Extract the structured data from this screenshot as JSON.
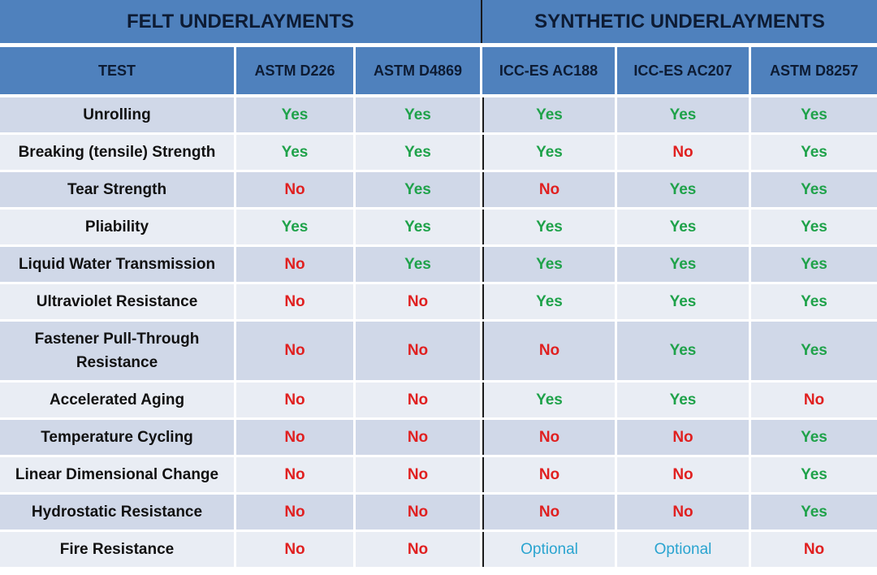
{
  "groups": {
    "felt": "FELT UNDERLAYMENTS",
    "synthetic": "SYNTHETIC UNDERLAYMENTS"
  },
  "columns": [
    "TEST",
    "ASTM D226",
    "ASTM D4869",
    "ICC-ES AC188",
    "ICC-ES AC207",
    "ASTM D8257"
  ],
  "rows": [
    {
      "test": "Unrolling",
      "values": [
        "Yes",
        "Yes",
        "Yes",
        "Yes",
        "Yes"
      ]
    },
    {
      "test": "Breaking (tensile) Strength",
      "values": [
        "Yes",
        "Yes",
        "Yes",
        "No",
        "Yes"
      ]
    },
    {
      "test": "Tear Strength",
      "values": [
        "No",
        "Yes",
        "No",
        "Yes",
        "Yes"
      ]
    },
    {
      "test": "Pliability",
      "values": [
        "Yes",
        "Yes",
        "Yes",
        "Yes",
        "Yes"
      ]
    },
    {
      "test": "Liquid Water Transmission",
      "values": [
        "No",
        "Yes",
        "Yes",
        "Yes",
        "Yes"
      ]
    },
    {
      "test": "Ultraviolet Resistance",
      "values": [
        "No",
        "No",
        "Yes",
        "Yes",
        "Yes"
      ]
    },
    {
      "test": "Fastener Pull-Through Resistance",
      "values": [
        "No",
        "No",
        "No",
        "Yes",
        "Yes"
      ]
    },
    {
      "test": "Accelerated Aging",
      "values": [
        "No",
        "No",
        "Yes",
        "Yes",
        "No"
      ]
    },
    {
      "test": "Temperature Cycling",
      "values": [
        "No",
        "No",
        "No",
        "No",
        "Yes"
      ]
    },
    {
      "test": "Linear Dimensional Change",
      "values": [
        "No",
        "No",
        "No",
        "No",
        "Yes"
      ]
    },
    {
      "test": "Hydrostatic Resistance",
      "values": [
        "No",
        "No",
        "No",
        "No",
        "Yes"
      ]
    },
    {
      "test": "Fire Resistance",
      "values": [
        "No",
        "No",
        "Optional",
        "Optional",
        "No"
      ]
    }
  ],
  "colors": {
    "header_bg": "#4f81bd",
    "row_odd_bg": "#d0d8e8",
    "row_even_bg": "#e9edf4",
    "yes": "#1fa24a",
    "no": "#e02020",
    "optional": "#2aa4d0"
  }
}
